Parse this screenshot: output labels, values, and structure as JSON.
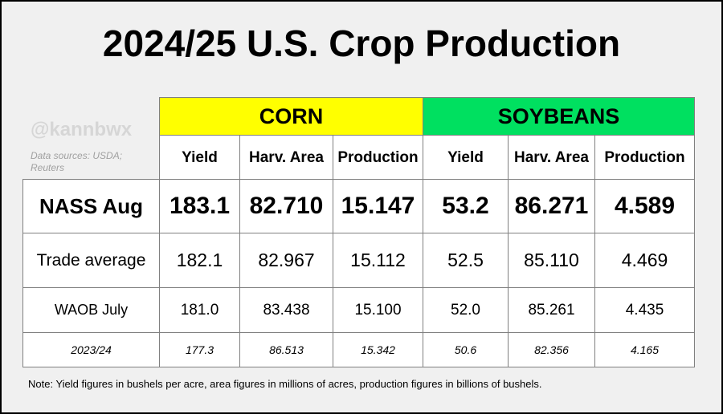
{
  "title": "2024/25 U.S. Crop Production",
  "watermark": "@kannbwx",
  "sources": "Data sources: USDA; Reuters",
  "colors": {
    "corn_header": "#ffff00",
    "soybeans_header": "#00e060",
    "background": "#f0f0f0",
    "watermark": "#d6d6d6"
  },
  "groups": {
    "corn": "CORN",
    "soybeans": "SOYBEANS"
  },
  "columns": [
    "Yield",
    "Harv. Area",
    "Production",
    "Yield",
    "Harv. Area",
    "Production"
  ],
  "rows": [
    {
      "label": "NASS Aug",
      "values": [
        "183.1",
        "82.710",
        "15.147",
        "53.2",
        "86.271",
        "4.589"
      ]
    },
    {
      "label": "Trade average",
      "values": [
        "182.1",
        "82.967",
        "15.112",
        "52.5",
        "85.110",
        "4.469"
      ]
    },
    {
      "label": "WAOB July",
      "values": [
        "181.0",
        "83.438",
        "15.100",
        "52.0",
        "85.261",
        "4.435"
      ]
    },
    {
      "label": "2023/24",
      "values": [
        "177.3",
        "86.513",
        "15.342",
        "50.6",
        "82.356",
        "4.165"
      ]
    }
  ],
  "note": "Note: Yield figures in bushels per acre, area figures in millions of acres, production figures in billions of bushels."
}
